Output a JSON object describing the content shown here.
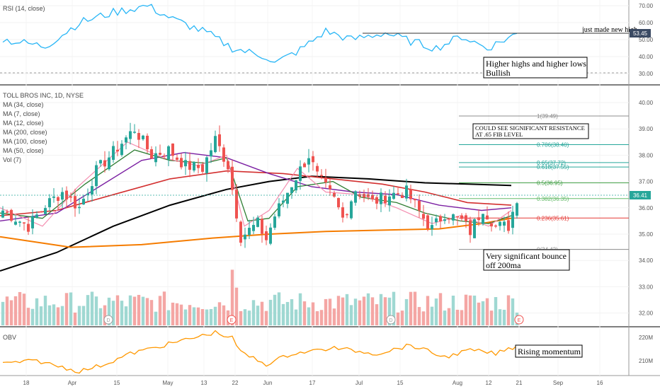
{
  "chart_data": {
    "type": "candlestick",
    "symbol_title": "TOLL BROS INC, 1D, NYSE",
    "indicators": [
      "MA (34, close)",
      "MA (7, close)",
      "MA (12, close)",
      "MA (200, close)",
      "MA (100, close)",
      "MA (50, close)",
      "Vol (7)"
    ],
    "rsi": {
      "title": "RSI (14, close)",
      "yticks": [
        "70.00",
        "60.00",
        "50.00",
        "40.00",
        "30.00"
      ],
      "current_label": "53.45",
      "note": "just made new high",
      "band": [
        30,
        70
      ]
    },
    "price": {
      "yticks": [
        "40.00",
        "39.00",
        "38.00",
        "37.00",
        "36.00",
        "35.00",
        "34.00",
        "33.00",
        "32.00"
      ],
      "ylim": [
        31.5,
        40.3
      ],
      "current_label": "36.41",
      "current": 36.41
    },
    "obv": {
      "title": "OBV",
      "yticks": [
        "220M",
        "210M"
      ]
    },
    "x_ticks": [
      "18",
      "Apr",
      "15",
      "May",
      "13",
      "22",
      "Jun",
      "17",
      "Jul",
      "15",
      "Aug",
      "12",
      "21",
      "Sep",
      "16"
    ],
    "fib_levels": [
      {
        "ratio": "1",
        "value": "39.49",
        "label": "1(39.49)",
        "color": "#8c8c8c"
      },
      {
        "ratio": "0.786",
        "value": "38.40",
        "label": "0.786(38.40)",
        "color": "#26a69a"
      },
      {
        "ratio": "0.65",
        "value": "37.72",
        "label": "0.65(37.72)",
        "color": "#26a69a"
      },
      {
        "ratio": "0.618",
        "value": "37.55",
        "label": "0.618(37.55)",
        "color": "#26a69a"
      },
      {
        "ratio": "0.5",
        "value": "36.95",
        "label": "0.5(36.95)",
        "color": "#43a047"
      },
      {
        "ratio": "0.382",
        "value": "36.35",
        "label": "0.382(36.35)",
        "color": "#66bb6a"
      },
      {
        "ratio": "0.236",
        "value": "35.61",
        "label": "0.236(35.61)",
        "color": "#e53935"
      },
      {
        "ratio": "0",
        "value": "34.42",
        "label": "0(34.42)",
        "color": "#8c8c8c"
      }
    ],
    "annotations": [
      "Higher highs and higher lows",
      "Bullish",
      "COULD SEE SIGNIFICANT RESISTANCE",
      "AT .65 FIB LEVEL",
      "Very significant bounce",
      "off 200ma",
      "Rising momentum"
    ],
    "event_markers": [
      "D",
      "E",
      "D",
      "E"
    ],
    "colors": {
      "up": "#26a69a",
      "down": "#ef5350",
      "rsi": "#29b6f6",
      "obv": "#ff9800",
      "ma200": "#000000",
      "ma100": "#f57c00",
      "ma50": "#d32f2f",
      "ma34": "#7b1fa2",
      "ma12": "#2e7d32",
      "ma7": "#f48fb1"
    }
  }
}
